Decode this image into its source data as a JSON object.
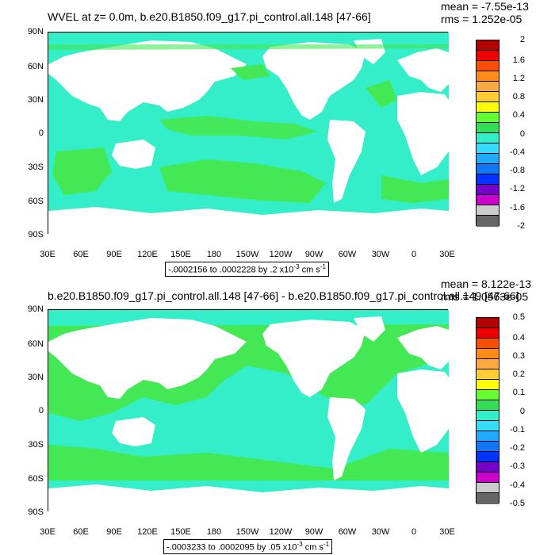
{
  "colors": {
    "ocean_near_zero": "#33eec8",
    "ocean_slight_pos": "#44e854",
    "land": "#ffffff",
    "legend_scale": [
      "#b30000",
      "#ee0000",
      "#ff4d00",
      "#ff8c1a",
      "#ffaa40",
      "#ffcc33",
      "#ffff00",
      "#66ff33",
      "#33dd55",
      "#33eec8",
      "#33ddff",
      "#22aaff",
      "#1177ff",
      "#0033ff",
      "#7700cc",
      "#cc00cc",
      "#cccccc",
      "#666666"
    ]
  },
  "x_ticks": [
    "30E",
    "60E",
    "90E",
    "120E",
    "150E",
    "180",
    "150W",
    "120W",
    "90W",
    "60W",
    "30W",
    "0",
    "30E"
  ],
  "y_ticks": [
    "90N",
    "60N",
    "30N",
    "0",
    "30S",
    "60S",
    "90S"
  ],
  "panels": [
    {
      "title": "WVEL at z=   0.0m, b.e20.B1850.f09_g17.pi_control.all.148 [47-66]",
      "mean": "mean = -7.55e-13",
      "rms": "rms = 1.252e-05",
      "legend": [
        "2",
        "1.6",
        "1.2",
        "0.8",
        "0.4",
        "0",
        "-0.4",
        "-0.8",
        "-1.2",
        "-1.6",
        "-2"
      ],
      "range_text": "-.0002156 to .0002228 by .2 x10",
      "range_exp": "-3",
      "range_units": " cm s",
      "range_units_exp": "-1"
    },
    {
      "title": "b.e20.B1850.f09_g17.pi_control.all.148 [47-66] - b.e20.B1850.f09_g17.pi_control.all.149 [47-66]",
      "mean": "mean = 8.122e-13",
      "rms": "rms = 1.0563e-05",
      "legend": [
        "0.5",
        "0.4",
        "0.3",
        "0.2",
        "0.1",
        "0",
        "-0.1",
        "-0.2",
        "-0.3",
        "-0.4",
        "-0.5"
      ],
      "range_text": "-.0003233 to .0002095 by .05 x10",
      "range_exp": "-3",
      "range_units": " cm s",
      "range_units_exp": "-1"
    }
  ]
}
